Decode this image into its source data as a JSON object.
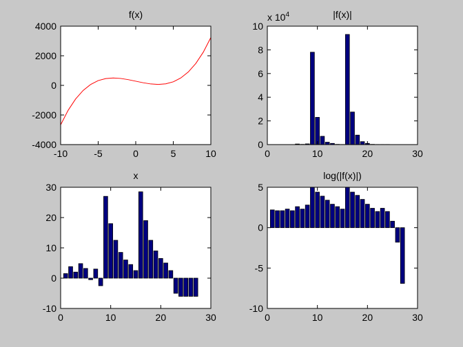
{
  "chart_data": [
    {
      "type": "line",
      "title": "f(x)",
      "color": "#ff0000",
      "x": [
        -10,
        -9,
        -8,
        -7,
        -6,
        -5,
        -4,
        -3,
        -2,
        -1,
        0,
        1,
        2,
        3,
        4,
        5,
        6,
        7,
        8,
        9,
        10
      ],
      "values": [
        -2668,
        -1682,
        -915,
        -341,
        63,
        322,
        459,
        500,
        468,
        387,
        282,
        177,
        96,
        64,
        105,
        242,
        501,
        905,
        1479,
        2246,
        3232
      ],
      "xlim": [
        -10,
        10
      ],
      "xticks": [
        -10,
        -5,
        0,
        5,
        10
      ],
      "ylim": [
        -4000,
        4000
      ],
      "yticks": [
        -4000,
        -2000,
        0,
        2000,
        4000
      ]
    },
    {
      "type": "bar",
      "title": "|f(x)|",
      "color": "#000080",
      "axis_multiplier": "x 10",
      "axis_multiplier_exponent": "4",
      "x": [
        1,
        2,
        3,
        4,
        5,
        6,
        7,
        8,
        9,
        10,
        11,
        12,
        13,
        14,
        15,
        16,
        17,
        18,
        19,
        20,
        21,
        22,
        23,
        24,
        25,
        26,
        27
      ],
      "values": [
        0.001,
        0.001,
        0.001,
        0.001,
        0.001,
        0.05,
        0.02,
        0.06,
        7.8,
        2.3,
        0.7,
        0.2,
        0.1,
        0.02,
        0.01,
        9.3,
        2.75,
        0.8,
        0.25,
        0.1,
        0.02,
        0.01,
        0.01,
        0.01,
        0.002,
        0.0002,
        0.0001
      ],
      "xlim": [
        0,
        30
      ],
      "xticks": [
        0,
        10,
        20,
        30
      ],
      "ylim": [
        0,
        10
      ],
      "yticks": [
        0,
        2,
        4,
        6,
        8,
        10
      ]
    },
    {
      "type": "bar",
      "title": "x",
      "color": "#000080",
      "x": [
        1,
        2,
        3,
        4,
        5,
        6,
        7,
        8,
        9,
        10,
        11,
        12,
        13,
        14,
        15,
        16,
        17,
        18,
        19,
        20,
        21,
        22,
        23,
        24,
        25,
        26,
        27
      ],
      "values": [
        1.5,
        3.8,
        2,
        4.8,
        3.2,
        -0.5,
        3,
        -2.5,
        27,
        18,
        12.5,
        8.5,
        6,
        4.5,
        2.5,
        28.5,
        19,
        12.5,
        9,
        6.5,
        5,
        2.5,
        -5,
        -6,
        -6,
        -6,
        -6
      ],
      "xlim": [
        0,
        30
      ],
      "xticks": [
        0,
        10,
        20,
        30
      ],
      "ylim": [
        -10,
        30
      ],
      "yticks": [
        -10,
        0,
        10,
        20,
        30
      ]
    },
    {
      "type": "bar",
      "title": "log(|f(x)|)",
      "color": "#000080",
      "x": [
        1,
        2,
        3,
        4,
        5,
        6,
        7,
        8,
        9,
        10,
        11,
        12,
        13,
        14,
        15,
        16,
        17,
        18,
        19,
        20,
        21,
        22,
        23,
        24,
        25,
        26,
        27
      ],
      "values": [
        2.2,
        2.1,
        2.1,
        2.3,
        2.1,
        2.6,
        2.3,
        2.8,
        5,
        4.4,
        3.9,
        3.4,
        2.9,
        2.6,
        2.3,
        5,
        4.4,
        4.0,
        3.5,
        2.9,
        2.4,
        2.0,
        2.4,
        2.0,
        0.8,
        -1.8,
        -6.9
      ],
      "xlim": [
        0,
        30
      ],
      "xticks": [
        0,
        10,
        20,
        30
      ],
      "ylim": [
        -10,
        5
      ],
      "yticks": [
        -10,
        -5,
        0,
        5
      ]
    }
  ]
}
